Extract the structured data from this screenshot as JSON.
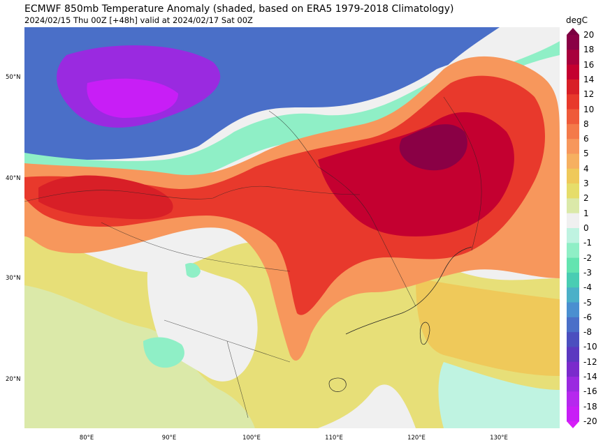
{
  "header": {
    "title": "ECMWF 850mb Temperature Anomaly (shaded, based on ERA5 1979-2018 Climatology)",
    "subtitle": "2024/02/15 Thu 00Z [+48h] valid at 2024/02/17 Sat 00Z"
  },
  "axes": {
    "lat_labels": [
      "50°N",
      "40°N",
      "30°N",
      "20°N"
    ],
    "lon_labels": [
      "80°E",
      "90°E",
      "100°E",
      "110°E",
      "120°E",
      "130°E"
    ]
  },
  "colorbar": {
    "unit": "degC",
    "labels": [
      "20",
      "18",
      "16",
      "14",
      "12",
      "10",
      "8",
      "6",
      "5",
      "4",
      "3",
      "2",
      "1",
      "0",
      "-1",
      "-2",
      "-3",
      "-4",
      "-5",
      "-6",
      "-8",
      "-10",
      "-12",
      "-14",
      "-16",
      "-18",
      "-20"
    ],
    "colors": [
      "#8a0045",
      "#a8003c",
      "#c40030",
      "#d81f27",
      "#e8392c",
      "#ef5a3a",
      "#f47a4a",
      "#f7975c",
      "#f6b060",
      "#efc95a",
      "#e6dd6a",
      "#dbe9a9",
      "#f0f0f0",
      "#bff3e1",
      "#8fefc6",
      "#63e4b0",
      "#49cdb3",
      "#4bb0c8",
      "#4a8fd0",
      "#4a6fc8",
      "#4b4fbf",
      "#5b38c0",
      "#7a2bcc",
      "#9a2ae0",
      "#b628ee",
      "#c81ef6"
    ],
    "top_arrow_color": "#7a0040",
    "bottom_arrow_color": "#d61ef8"
  },
  "map": {
    "background": "#f0f0f0"
  }
}
